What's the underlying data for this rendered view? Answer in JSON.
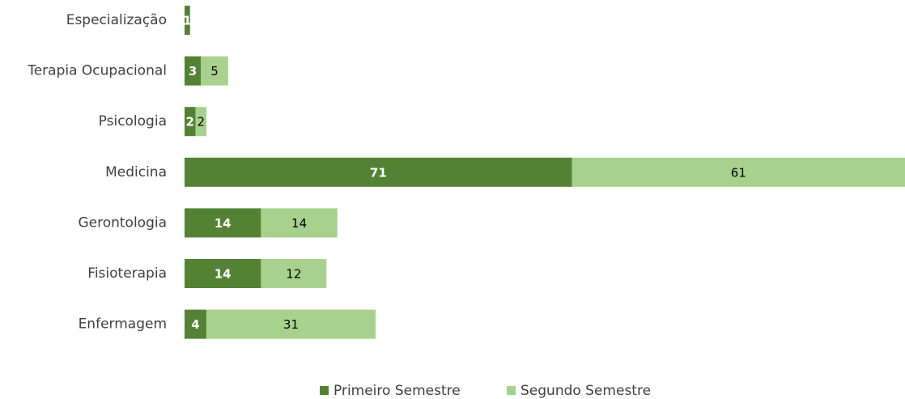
{
  "chart_data": {
    "type": "bar",
    "orientation": "horizontal",
    "stacked": true,
    "categories": [
      "Especialização",
      "Terapia Ocupacional",
      "Psicologia",
      "Medicina",
      "Gerontologia",
      "Fisioterapia",
      "Enfermagem"
    ],
    "series": [
      {
        "name": "Primeiro Semestre",
        "color": "#548235",
        "values": [
          1,
          3,
          2,
          71,
          14,
          14,
          4
        ]
      },
      {
        "name": "Segundo Semestre",
        "color": "#a9d18e",
        "values": [
          null,
          5,
          2,
          61,
          14,
          12,
          31
        ]
      }
    ],
    "legend": "bottom"
  }
}
